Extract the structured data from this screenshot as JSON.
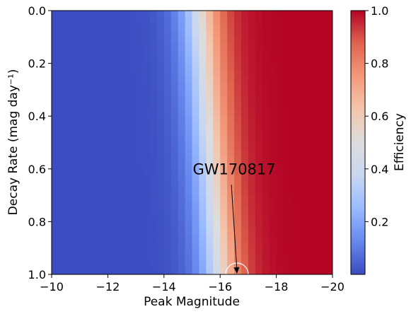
{
  "chart_data": {
    "type": "heatmap",
    "xlabel": "Peak Magnitude",
    "ylabel": "Decay Rate (mag day⁻¹)",
    "xlim": [
      -10,
      -20
    ],
    "ylim": [
      0.0,
      1.0
    ],
    "x_ticks": [
      -10,
      -12,
      -14,
      -16,
      -18,
      -20
    ],
    "x_tick_labels": [
      "−10",
      "−12",
      "−14",
      "−16",
      "−18",
      "−20"
    ],
    "y_ticks": [
      0.0,
      0.2,
      0.4,
      0.6,
      0.8,
      1.0
    ],
    "y_tick_labels": [
      "0.0",
      "0.2",
      "0.4",
      "0.6",
      "0.8",
      "1.0"
    ],
    "x_bins": 40,
    "y_bins": 40,
    "efficiency_model": {
      "type": "logistic",
      "center_at_decay_0": -15.3,
      "center_at_decay_1": -16.0,
      "width": 0.45
    },
    "colorbar": {
      "label": "Efficiency",
      "range": [
        0.0,
        1.0
      ],
      "ticks": [
        0.2,
        0.4,
        0.6,
        0.8,
        1.0
      ],
      "tick_labels": [
        "0.2",
        "0.4",
        "0.6",
        "0.8",
        "1.0"
      ],
      "colormap": "coolwarm",
      "colors": [
        "#3b4cc0",
        "#6688ee",
        "#9abbff",
        "#c9d7f0",
        "#dddddd",
        "#f4c6ad",
        "#f49a7b",
        "#e0654f",
        "#b40426"
      ]
    },
    "annotation": {
      "text": "GW170817",
      "point": {
        "x": -16.6,
        "y": 1.0
      },
      "text_position": {
        "x": -16.5,
        "y": 0.62
      },
      "arrow_start": {
        "x": -16.4,
        "y": 0.66
      },
      "marker_color": "#ffffff"
    }
  }
}
